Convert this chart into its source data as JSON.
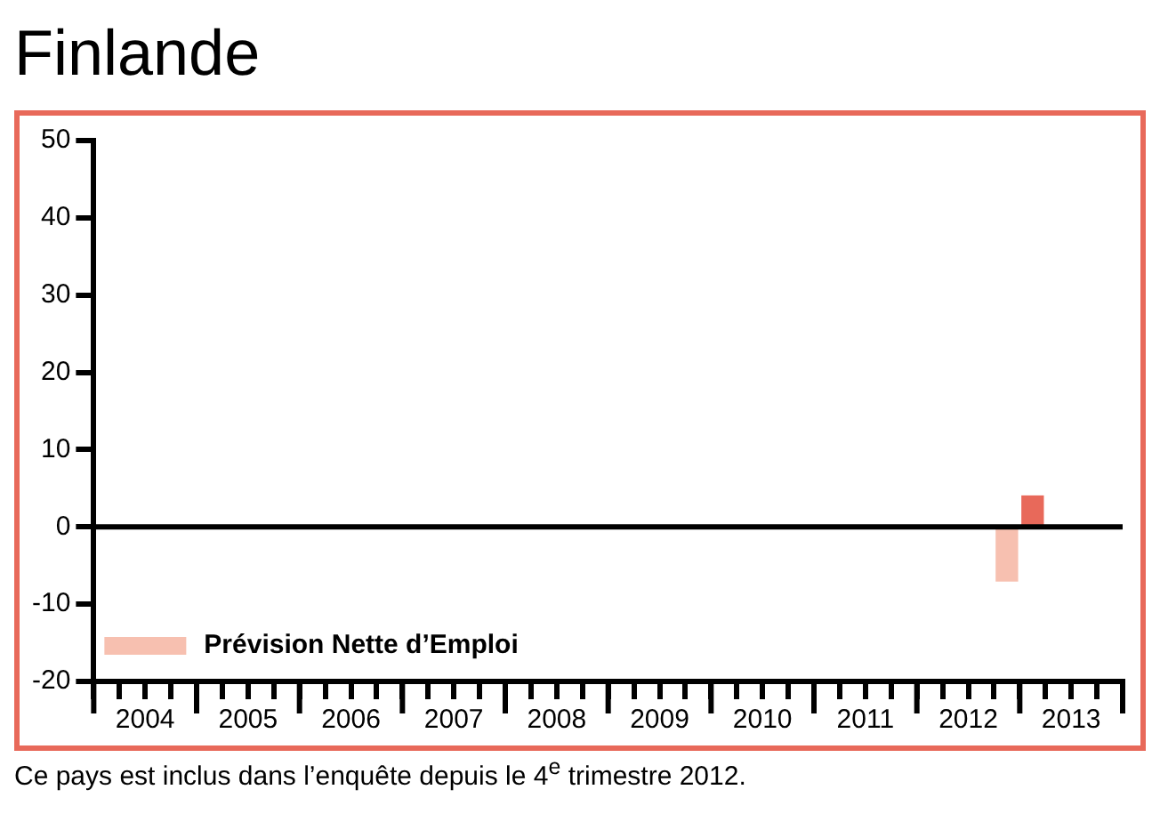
{
  "chart_data": {
    "type": "bar",
    "title": "Finlande",
    "x": [
      2012.875,
      2013.125
    ],
    "series": [
      {
        "name": "Prévision Nette d’Emploi",
        "color": "#f7c0b0",
        "colors": [
          "#f7c0b0",
          "#e8695a"
        ],
        "values": [
          -7,
          4
        ]
      }
    ],
    "xlim": [
      2004,
      2014
    ],
    "xticks": [
      {
        "value": 2004,
        "label": null
      },
      {
        "value": 2004.25,
        "label": null
      },
      {
        "value": 2004.5,
        "label": "2004"
      },
      {
        "value": 2004.75,
        "label": null
      },
      {
        "value": 2005,
        "label": null
      },
      {
        "value": 2005.25,
        "label": null
      },
      {
        "value": 2005.5,
        "label": "2005"
      },
      {
        "value": 2005.75,
        "label": null
      },
      {
        "value": 2006,
        "label": null
      },
      {
        "value": 2006.25,
        "label": null
      },
      {
        "value": 2006.5,
        "label": "2006"
      },
      {
        "value": 2006.75,
        "label": null
      },
      {
        "value": 2007,
        "label": null
      },
      {
        "value": 2007.25,
        "label": null
      },
      {
        "value": 2007.5,
        "label": "2007"
      },
      {
        "value": 2007.75,
        "label": null
      },
      {
        "value": 2008,
        "label": null
      },
      {
        "value": 2008.25,
        "label": null
      },
      {
        "value": 2008.5,
        "label": "2008"
      },
      {
        "value": 2008.75,
        "label": null
      },
      {
        "value": 2009,
        "label": null
      },
      {
        "value": 2009.25,
        "label": null
      },
      {
        "value": 2009.5,
        "label": "2009"
      },
      {
        "value": 2009.75,
        "label": null
      },
      {
        "value": 2010,
        "label": null
      },
      {
        "value": 2010.25,
        "label": null
      },
      {
        "value": 2010.5,
        "label": "2010"
      },
      {
        "value": 2010.75,
        "label": null
      },
      {
        "value": 2011,
        "label": null
      },
      {
        "value": 2011.25,
        "label": null
      },
      {
        "value": 2011.5,
        "label": "2011"
      },
      {
        "value": 2011.75,
        "label": null
      },
      {
        "value": 2012,
        "label": null
      },
      {
        "value": 2012.25,
        "label": null
      },
      {
        "value": 2012.5,
        "label": "2012"
      },
      {
        "value": 2012.75,
        "label": null
      },
      {
        "value": 2013,
        "label": null
      },
      {
        "value": 2013.25,
        "label": null
      },
      {
        "value": 2013.5,
        "label": "2013"
      },
      {
        "value": 2013.75,
        "label": null
      },
      {
        "value": 2014,
        "label": null
      }
    ],
    "ylim": [
      -20,
      50
    ],
    "yticks": [
      -20,
      -10,
      0,
      10,
      20,
      30,
      40,
      50
    ],
    "ref_lines": [
      {
        "axis": "y",
        "value": 0,
        "color": "#000000"
      }
    ],
    "legend": "bottom left",
    "annotations": [
      "Ce pays est inclus dans l’enquête depuis le 4$^{e}$ trimestre 2012."
    ]
  }
}
